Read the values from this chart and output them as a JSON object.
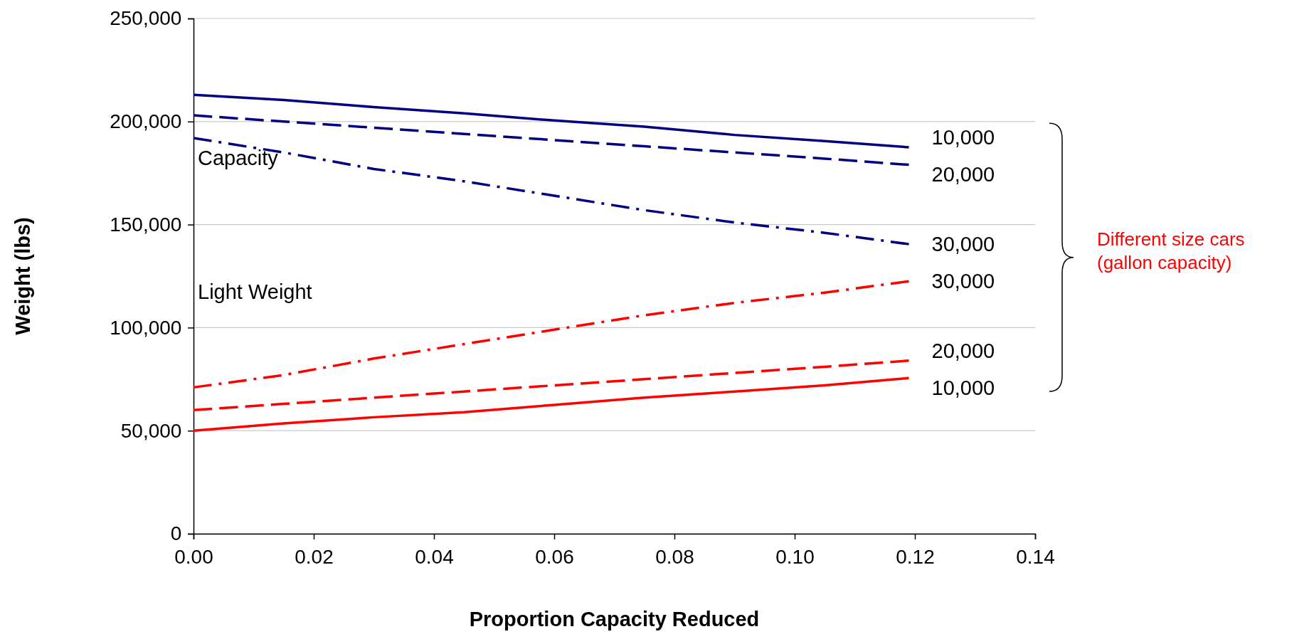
{
  "chart_data": {
    "type": "line",
    "xlabel": "Proportion Capacity Reduced",
    "ylabel": "Weight (lbs)",
    "x": [
      0,
      0.015,
      0.03,
      0.045,
      0.06,
      0.075,
      0.09,
      0.105,
      0.119
    ],
    "xlim": [
      0,
      0.14
    ],
    "xticks": [
      {
        "value": 0,
        "label": "0.00"
      },
      {
        "value": 0.02,
        "label": "0.02"
      },
      {
        "value": 0.04,
        "label": "0.04"
      },
      {
        "value": 0.06,
        "label": "0.06"
      },
      {
        "value": 0.08,
        "label": "0.08"
      },
      {
        "value": 0.1,
        "label": "0.10"
      },
      {
        "value": 0.12,
        "label": "0.12"
      },
      {
        "value": 0.14,
        "label": "0.14"
      }
    ],
    "ylim": [
      0,
      250000
    ],
    "yticks": [
      {
        "value": 0,
        "label": "0"
      },
      {
        "value": 50000,
        "label": "50,000"
      },
      {
        "value": 100000,
        "label": "100,000"
      },
      {
        "value": 150000,
        "label": "150,000"
      },
      {
        "value": 200000,
        "label": "200,000"
      },
      {
        "value": 250000,
        "label": "250,000"
      }
    ],
    "grid": "y",
    "marker": "none",
    "series": [
      {
        "name": "10,000",
        "color": "#000080",
        "line_style": "solid",
        "values": [
          213000,
          210500,
          207000,
          204000,
          200500,
          197500,
          193500,
          190500,
          187500
        ]
      },
      {
        "name": "20,000",
        "color": "#000080",
        "line_style": "dashed",
        "values": [
          203000,
          200000,
          197000,
          194000,
          191000,
          188000,
          185000,
          182000,
          179000
        ]
      },
      {
        "name": "30,000",
        "color": "#000080",
        "line_style": "dashdot",
        "values": [
          192000,
          185000,
          177000,
          171000,
          164000,
          157000,
          151000,
          146000,
          140500
        ]
      },
      {
        "name": "30,000",
        "color": "#ff0000",
        "line_style": "dashdot",
        "values": [
          71000,
          77000,
          85000,
          92000,
          99000,
          106000,
          112000,
          117000,
          122500
        ]
      },
      {
        "name": "20,000",
        "color": "#ff0000",
        "line_style": "dashed",
        "values": [
          60000,
          63000,
          66000,
          69000,
          72000,
          75000,
          78000,
          81000,
          84000
        ]
      },
      {
        "name": "10,000",
        "color": "#ff0000",
        "line_style": "solid",
        "values": [
          50000,
          53500,
          56500,
          59000,
          62500,
          66000,
          69000,
          72000,
          75500
        ]
      }
    ],
    "annotations": [
      "Capacity",
      "Light Weight",
      "Different size cars (gallon capacity)"
    ]
  }
}
